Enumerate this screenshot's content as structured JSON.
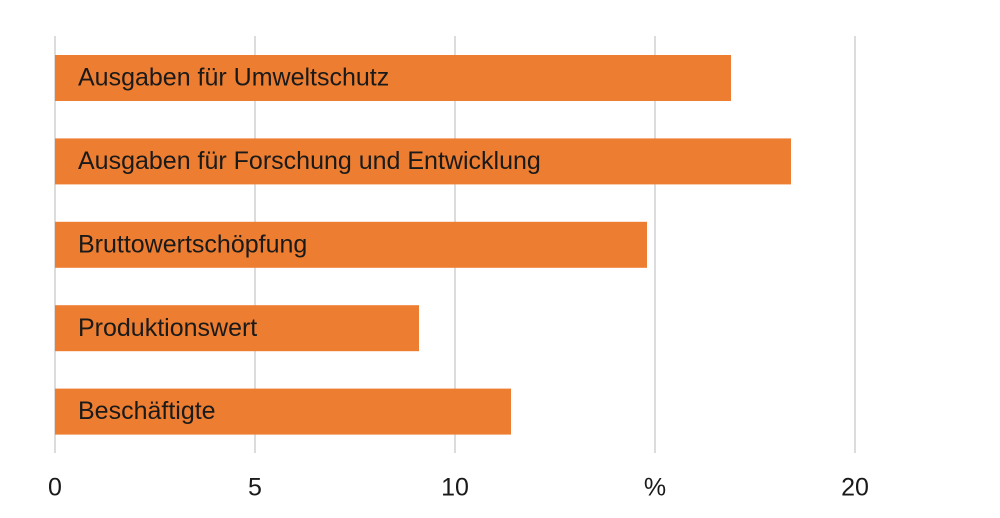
{
  "chart_data": {
    "type": "bar",
    "orientation": "horizontal",
    "categories": [
      "Ausgaben für Umweltschutz",
      "Ausgaben für Forschung und Entwicklung",
      "Bruttowertschöpfung",
      "Produktionswert",
      "Beschäftigte"
    ],
    "values": [
      16.9,
      18.4,
      14.8,
      9.1,
      11.4
    ],
    "color": "#ed7d31",
    "xlim": [
      0,
      20
    ],
    "xticks": [
      0,
      5,
      10,
      {
        "value": 15,
        "label": "%"
      },
      20
    ],
    "grid": true
  }
}
